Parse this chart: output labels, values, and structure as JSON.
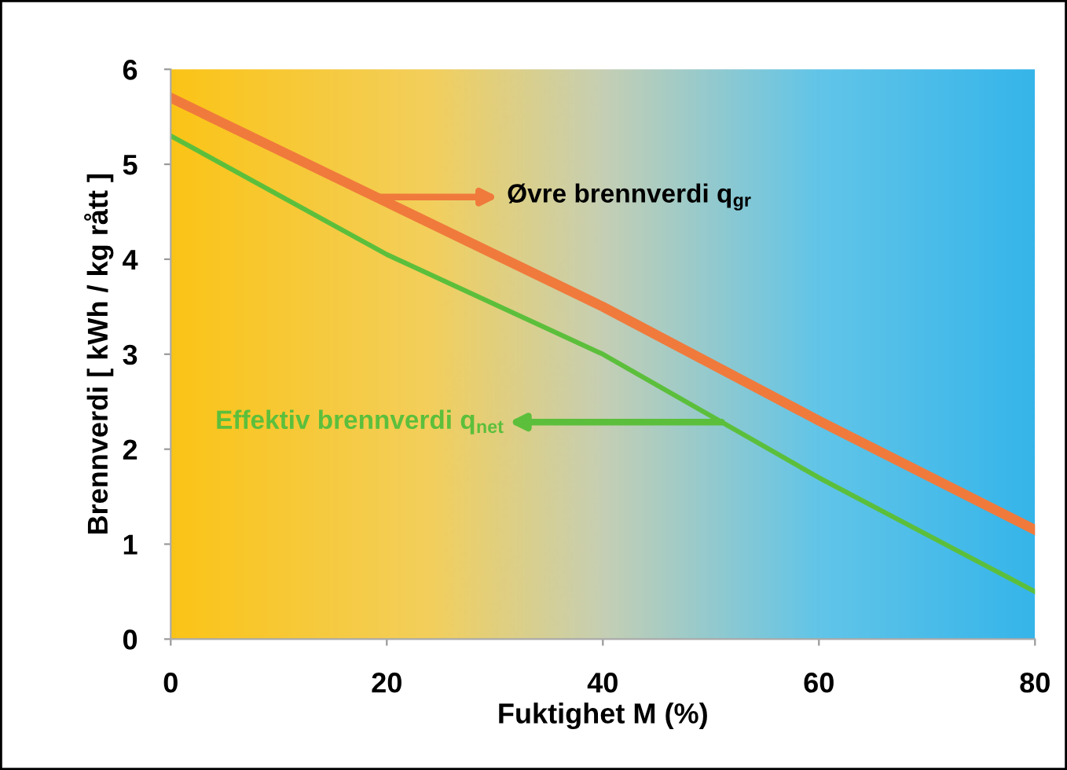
{
  "chart_data": {
    "type": "line",
    "xlabel": "Fuktighet M (%)",
    "ylabel": "Brennverdi [ kWh / kg rått ]",
    "x": [
      0,
      20,
      40,
      60,
      80
    ],
    "series": [
      {
        "name": "Øvre brennverdi q$_{gr}$",
        "color": "#f07a3c",
        "values": [
          5.7,
          4.6,
          3.5,
          2.3,
          1.15
        ]
      },
      {
        "name": "Effektiv brennverdi q$_{net}$",
        "color": "#5cbf3c",
        "values": [
          5.3,
          4.05,
          3.0,
          1.7,
          0.5
        ]
      }
    ],
    "xlim": [
      0,
      80
    ],
    "ylim": [
      0,
      6
    ],
    "xticks": [
      0,
      20,
      40,
      60,
      80
    ],
    "yticks": [
      0,
      1,
      2,
      3,
      4,
      5,
      6
    ],
    "grid": false,
    "marker": "none",
    "line_style": "solid"
  }
}
